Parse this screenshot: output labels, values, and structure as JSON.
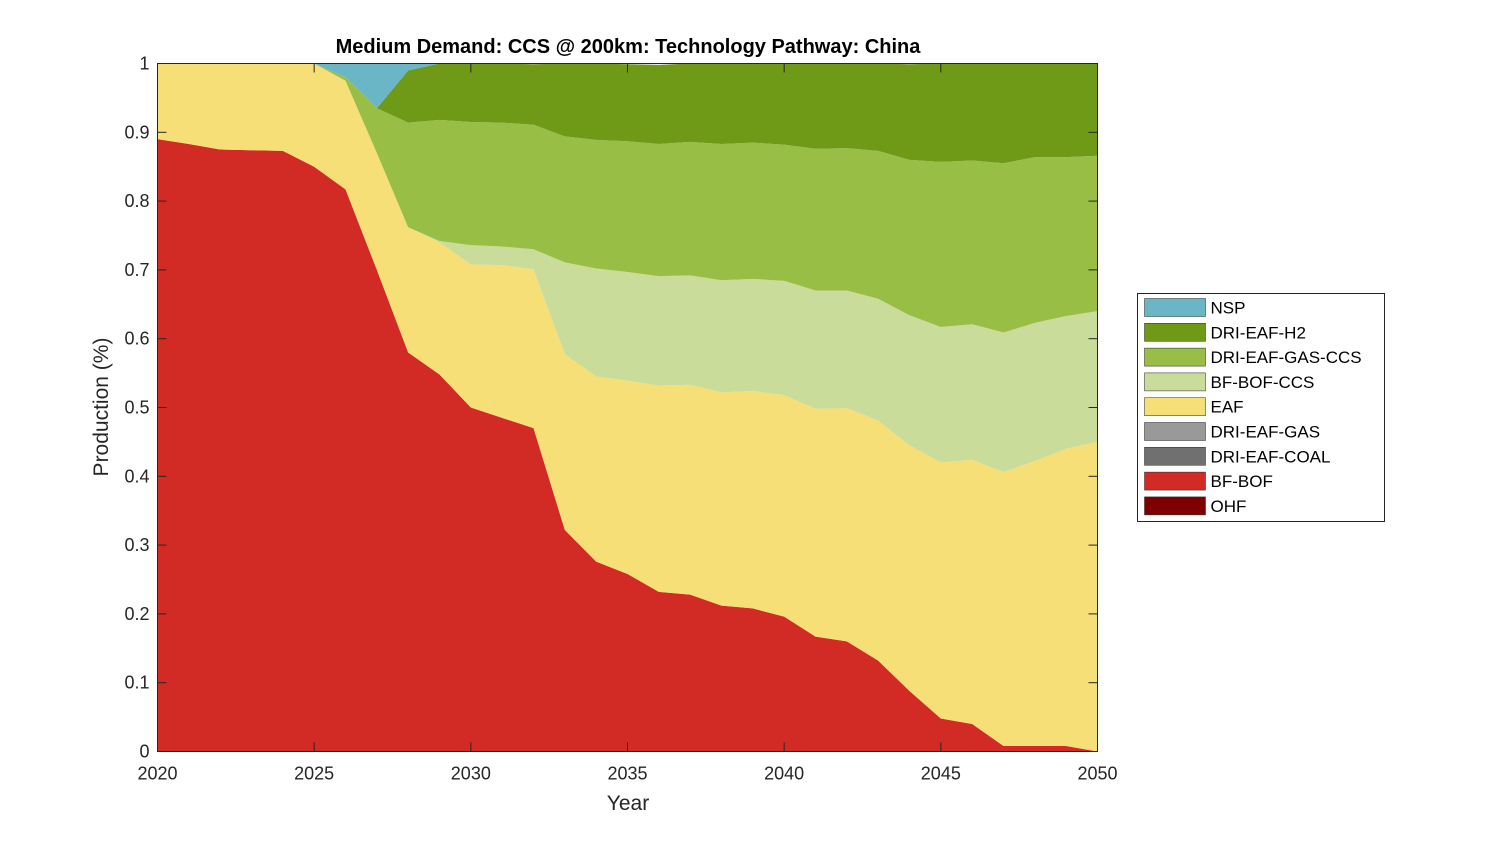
{
  "chart_data": {
    "type": "area",
    "stacked": true,
    "title": "Medium Demand: CCS @ 200km: Technology Pathway: China",
    "xlabel": "Year",
    "ylabel": "Production (%)",
    "xlim": [
      2020,
      2050
    ],
    "ylim": [
      0,
      1
    ],
    "xticks": [
      2020,
      2025,
      2030,
      2035,
      2040,
      2045,
      2050
    ],
    "yticks": [
      0,
      0.1,
      0.2,
      0.3,
      0.4,
      0.5,
      0.6,
      0.7,
      0.8,
      0.9,
      1
    ],
    "xtick_labels": [
      "2020",
      "2025",
      "2030",
      "2035",
      "2040",
      "2045",
      "2050"
    ],
    "ytick_labels": [
      "0",
      "0.1",
      "0.2",
      "0.3",
      "0.4",
      "0.5",
      "0.6",
      "0.7",
      "0.8",
      "0.9",
      "1"
    ],
    "grid": false,
    "legend_position": "right",
    "x": [
      2020,
      2021,
      2022,
      2023,
      2024,
      2025,
      2026,
      2027,
      2028,
      2029,
      2030,
      2031,
      2032,
      2033,
      2034,
      2035,
      2036,
      2037,
      2038,
      2039,
      2040,
      2041,
      2042,
      2043,
      2044,
      2045,
      2046,
      2047,
      2048,
      2049,
      2050
    ],
    "series": [
      {
        "name": "OHF",
        "color": "#7f0000",
        "values": [
          0,
          0,
          0,
          0,
          0,
          0,
          0,
          0,
          0,
          0,
          0,
          0,
          0,
          0,
          0,
          0,
          0,
          0,
          0,
          0,
          0,
          0,
          0,
          0,
          0,
          0,
          0,
          0,
          0,
          0,
          0
        ]
      },
      {
        "name": "BF-BOF",
        "color": "#d22a25",
        "values": [
          0.89,
          0.883,
          0.875,
          0.874,
          0.873,
          0.85,
          0.817,
          0.7,
          0.58,
          0.548,
          0.5,
          0.485,
          0.47,
          0.322,
          0.276,
          0.258,
          0.232,
          0.228,
          0.212,
          0.208,
          0.196,
          0.167,
          0.16,
          0.132,
          0.088,
          0.048,
          0.04,
          0.008,
          0.008,
          0.008,
          0.0
        ]
      },
      {
        "name": "DRI-EAF-COAL",
        "color": "#707070",
        "values": [
          0,
          0,
          0,
          0,
          0,
          0,
          0,
          0,
          0,
          0,
          0,
          0,
          0,
          0,
          0,
          0,
          0,
          0,
          0,
          0,
          0,
          0,
          0,
          0,
          0,
          0,
          0,
          0,
          0,
          0,
          0
        ]
      },
      {
        "name": "DRI-EAF-GAS",
        "color": "#999999",
        "values": [
          0,
          0,
          0,
          0,
          0,
          0,
          0,
          0,
          0,
          0,
          0,
          0,
          0,
          0,
          0,
          0,
          0,
          0,
          0,
          0,
          0,
          0,
          0,
          0,
          0,
          0,
          0,
          0,
          0,
          0,
          0
        ]
      },
      {
        "name": "EAF",
        "color": "#f7df78",
        "values": [
          0.11,
          0.117,
          0.125,
          0.126,
          0.127,
          0.15,
          0.158,
          0.17,
          0.182,
          0.192,
          0.208,
          0.222,
          0.231,
          0.255,
          0.269,
          0.281,
          0.3,
          0.305,
          0.31,
          0.316,
          0.322,
          0.331,
          0.339,
          0.349,
          0.357,
          0.372,
          0.384,
          0.398,
          0.414,
          0.432,
          0.45
        ]
      },
      {
        "name": "BF-BOF-CCS",
        "color": "#c9dc9a",
        "values": [
          0,
          0,
          0,
          0,
          0,
          0,
          0,
          0,
          0,
          0.002,
          0.028,
          0.027,
          0.029,
          0.134,
          0.157,
          0.158,
          0.159,
          0.159,
          0.163,
          0.163,
          0.166,
          0.172,
          0.171,
          0.177,
          0.189,
          0.197,
          0.197,
          0.203,
          0.201,
          0.193,
          0.19
        ]
      },
      {
        "name": "DRI-EAF-GAS-CCS",
        "color": "#98be46",
        "values": [
          0,
          0,
          0,
          0,
          0,
          0,
          0.005,
          0.065,
          0.152,
          0.176,
          0.179,
          0.18,
          0.181,
          0.183,
          0.187,
          0.19,
          0.192,
          0.194,
          0.198,
          0.198,
          0.198,
          0.206,
          0.207,
          0.215,
          0.226,
          0.24,
          0.238,
          0.246,
          0.241,
          0.231,
          0.226
        ]
      },
      {
        "name": "DRI-EAF-H2",
        "color": "#6e9a18",
        "values": [
          0,
          0,
          0,
          0,
          0,
          0,
          0,
          0,
          0.076,
          0.082,
          0.085,
          0.086,
          0.088,
          0.106,
          0.111,
          0.112,
          0.115,
          0.114,
          0.117,
          0.115,
          0.118,
          0.124,
          0.123,
          0.127,
          0.139,
          0.143,
          0.141,
          0.145,
          0.137,
          0.136,
          0.134
        ]
      },
      {
        "name": "NSP",
        "color": "#6bb6c6",
        "values": [
          0,
          0,
          0,
          0,
          0,
          0,
          0.02,
          0.065,
          0.01,
          0,
          0,
          0,
          0,
          0,
          0,
          0,
          0,
          0,
          0,
          0,
          0,
          0,
          0,
          0,
          0,
          0,
          0,
          0,
          0,
          0,
          0
        ]
      }
    ],
    "legend_order": [
      "NSP",
      "DRI-EAF-H2",
      "DRI-EAF-GAS-CCS",
      "BF-BOF-CCS",
      "EAF",
      "DRI-EAF-GAS",
      "DRI-EAF-COAL",
      "BF-BOF",
      "OHF"
    ]
  }
}
